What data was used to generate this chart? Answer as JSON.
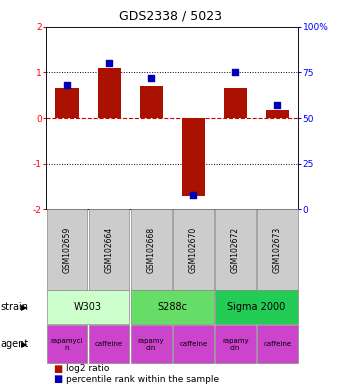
{
  "title": "GDS2338 / 5023",
  "samples": [
    "GSM102659",
    "GSM102664",
    "GSM102668",
    "GSM102670",
    "GSM102672",
    "GSM102673"
  ],
  "log2_ratio": [
    0.65,
    1.1,
    0.7,
    -1.7,
    0.65,
    0.18
  ],
  "percentile_pct": [
    68,
    80,
    72,
    8,
    75,
    57
  ],
  "ylim_left": [
    -2,
    2
  ],
  "ylim_right": [
    0,
    100
  ],
  "yticks_left": [
    -2,
    -1,
    0,
    1,
    2
  ],
  "yticks_right": [
    0,
    25,
    50,
    75,
    100
  ],
  "ytick_labels_right": [
    "0",
    "25",
    "50",
    "75",
    "100%"
  ],
  "strains": [
    {
      "label": "W303",
      "cols": [
        0,
        1
      ],
      "color": "#ccffcc"
    },
    {
      "label": "S288c",
      "cols": [
        2,
        3
      ],
      "color": "#66dd66"
    },
    {
      "label": "Sigma 2000",
      "cols": [
        4,
        5
      ],
      "color": "#22cc55"
    }
  ],
  "agent_labels": [
    "rapamyci\nn",
    "caffeine",
    "rapamy\ncin",
    "caffeine",
    "rapamy\ncin",
    "caffeine"
  ],
  "agent_color": "#cc44cc",
  "bar_color": "#aa1100",
  "dot_color": "#0000bb",
  "legend_bar_label": "log2 ratio",
  "legend_dot_label": "percentile rank within the sample",
  "sample_box_color": "#cccccc",
  "hline0_color": "#cc0000",
  "hline1_color": "#000000",
  "bar_width": 0.55,
  "dot_size": 22
}
